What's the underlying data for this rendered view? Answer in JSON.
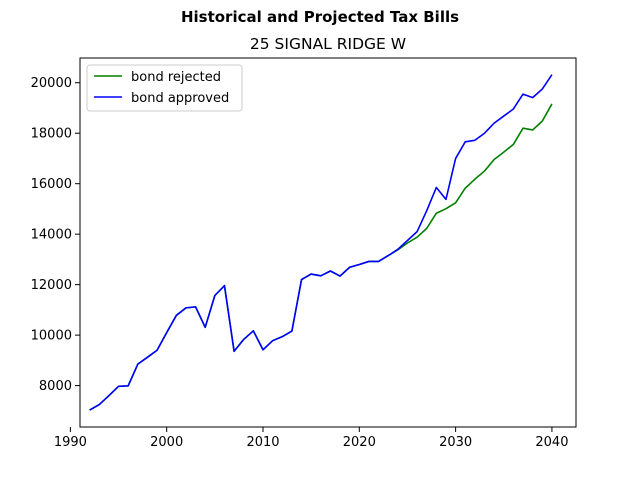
{
  "figure": {
    "suptitle": "Historical and Projected Tax Bills"
  },
  "chart_data": {
    "type": "line",
    "title": "25 SIGNAL RIDGE W",
    "xlabel": "",
    "ylabel": "",
    "xlim": [
      1991,
      2042.5
    ],
    "ylim": [
      6360,
      20980
    ],
    "xticks": [
      1990,
      2000,
      2010,
      2020,
      2030,
      2040
    ],
    "yticks": [
      8000,
      10000,
      12000,
      14000,
      16000,
      18000,
      20000
    ],
    "grid": false,
    "legend_position": "top-left",
    "series": [
      {
        "name": "bond rejected",
        "color": "#008000",
        "x": [
          1992,
          1993,
          1994,
          1995,
          1996,
          1997,
          1998,
          1999,
          2000,
          2001,
          2002,
          2003,
          2004,
          2005,
          2006,
          2007,
          2008,
          2009,
          2010,
          2011,
          2012,
          2013,
          2014,
          2015,
          2016,
          2017,
          2018,
          2019,
          2020,
          2021,
          2022,
          2023,
          2024,
          2025,
          2026,
          2027,
          2028,
          2029,
          2030,
          2031,
          2032,
          2033,
          2034,
          2035,
          2036,
          2037,
          2038,
          2039,
          2040
        ],
        "y": [
          7030,
          7250,
          7600,
          7970,
          7990,
          8850,
          9120,
          9400,
          10100,
          10780,
          11080,
          11120,
          10310,
          11570,
          11960,
          9360,
          9830,
          10170,
          9420,
          9780,
          9940,
          10160,
          12200,
          12420,
          12350,
          12540,
          12340,
          12690,
          12800,
          12920,
          12920,
          13150,
          13380,
          13650,
          13880,
          14230,
          14830,
          15010,
          15240,
          15820,
          16180,
          16500,
          16960,
          17250,
          17560,
          18200,
          18130,
          18480,
          19160
        ]
      },
      {
        "name": "bond approved",
        "color": "#0000ff",
        "x": [
          1992,
          1993,
          1994,
          1995,
          1996,
          1997,
          1998,
          1999,
          2000,
          2001,
          2002,
          2003,
          2004,
          2005,
          2006,
          2007,
          2008,
          2009,
          2010,
          2011,
          2012,
          2013,
          2014,
          2015,
          2016,
          2017,
          2018,
          2019,
          2020,
          2021,
          2022,
          2023,
          2024,
          2025,
          2026,
          2027,
          2028,
          2029,
          2030,
          2031,
          2032,
          2033,
          2034,
          2035,
          2036,
          2037,
          2038,
          2039,
          2040
        ],
        "y": [
          7030,
          7250,
          7600,
          7970,
          7990,
          8850,
          9120,
          9400,
          10100,
          10780,
          11080,
          11120,
          10310,
          11570,
          11960,
          9360,
          9830,
          10170,
          9420,
          9780,
          9940,
          10160,
          12200,
          12420,
          12350,
          12540,
          12340,
          12690,
          12800,
          12920,
          12920,
          13150,
          13400,
          13750,
          14100,
          14930,
          15850,
          15380,
          17000,
          17660,
          17720,
          18000,
          18400,
          18680,
          18960,
          19550,
          19410,
          19750,
          20320
        ]
      }
    ]
  }
}
